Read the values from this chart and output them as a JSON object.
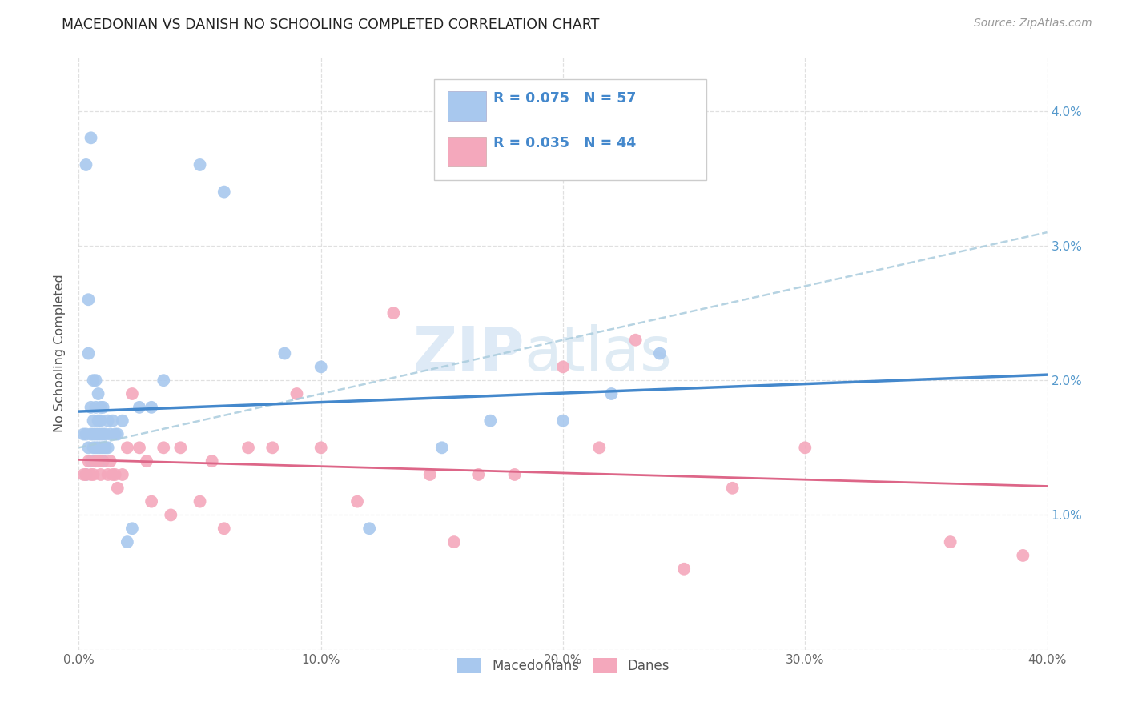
{
  "title": "MACEDONIAN VS DANISH NO SCHOOLING COMPLETED CORRELATION CHART",
  "source": "Source: ZipAtlas.com",
  "xlim": [
    0.0,
    0.4
  ],
  "ylim": [
    0.0,
    0.044
  ],
  "ytick_vals": [
    0.0,
    0.01,
    0.02,
    0.03,
    0.04
  ],
  "xtick_vals": [
    0.0,
    0.1,
    0.2,
    0.3,
    0.4
  ],
  "ytick_labels": [
    "",
    "1.0%",
    "2.0%",
    "3.0%",
    "4.0%"
  ],
  "xtick_labels": [
    "0.0%",
    "10.0%",
    "20.0%",
    "30.0%",
    "40.0%"
  ],
  "legend_label1": "Macedonians",
  "legend_label2": "Danes",
  "R1": 0.075,
  "N1": 57,
  "R2": 0.035,
  "N2": 44,
  "color_blue": "#A8C8EE",
  "color_pink": "#F4A8BC",
  "line_blue": "#4488CC",
  "line_pink": "#DD6688",
  "line_dash": "#AACCDD",
  "watermark_color": "#C8DCF0",
  "mac_x": [
    0.002,
    0.003,
    0.003,
    0.004,
    0.004,
    0.005,
    0.005,
    0.005,
    0.006,
    0.006,
    0.006,
    0.006,
    0.007,
    0.007,
    0.007,
    0.007,
    0.007,
    0.008,
    0.008,
    0.008,
    0.008,
    0.009,
    0.009,
    0.009,
    0.009,
    0.009,
    0.01,
    0.01,
    0.01,
    0.01,
    0.011,
    0.011,
    0.012,
    0.012,
    0.013,
    0.014,
    0.015,
    0.016,
    0.018,
    0.02,
    0.022,
    0.025,
    0.03,
    0.035,
    0.05,
    0.06,
    0.085,
    0.1,
    0.12,
    0.15,
    0.17,
    0.2,
    0.22,
    0.24,
    0.005,
    0.003,
    0.004
  ],
  "mac_y": [
    0.016,
    0.016,
    0.013,
    0.022,
    0.015,
    0.018,
    0.016,
    0.014,
    0.02,
    0.017,
    0.016,
    0.015,
    0.02,
    0.018,
    0.016,
    0.015,
    0.014,
    0.019,
    0.017,
    0.016,
    0.015,
    0.018,
    0.017,
    0.016,
    0.015,
    0.014,
    0.018,
    0.016,
    0.015,
    0.014,
    0.016,
    0.015,
    0.017,
    0.015,
    0.016,
    0.017,
    0.016,
    0.016,
    0.017,
    0.008,
    0.009,
    0.018,
    0.018,
    0.02,
    0.036,
    0.034,
    0.022,
    0.021,
    0.009,
    0.015,
    0.017,
    0.017,
    0.019,
    0.022,
    0.038,
    0.036,
    0.026
  ],
  "dan_x": [
    0.002,
    0.003,
    0.004,
    0.005,
    0.006,
    0.007,
    0.008,
    0.009,
    0.01,
    0.012,
    0.013,
    0.014,
    0.015,
    0.016,
    0.018,
    0.02,
    0.022,
    0.025,
    0.028,
    0.03,
    0.035,
    0.038,
    0.042,
    0.05,
    0.055,
    0.06,
    0.07,
    0.08,
    0.09,
    0.1,
    0.115,
    0.13,
    0.145,
    0.155,
    0.165,
    0.18,
    0.2,
    0.215,
    0.23,
    0.25,
    0.27,
    0.3,
    0.36,
    0.39
  ],
  "dan_y": [
    0.013,
    0.013,
    0.014,
    0.013,
    0.013,
    0.014,
    0.014,
    0.013,
    0.014,
    0.013,
    0.014,
    0.013,
    0.013,
    0.012,
    0.013,
    0.015,
    0.019,
    0.015,
    0.014,
    0.011,
    0.015,
    0.01,
    0.015,
    0.011,
    0.014,
    0.009,
    0.015,
    0.015,
    0.019,
    0.015,
    0.011,
    0.025,
    0.013,
    0.008,
    0.013,
    0.013,
    0.021,
    0.015,
    0.023,
    0.006,
    0.012,
    0.015,
    0.008,
    0.007
  ]
}
